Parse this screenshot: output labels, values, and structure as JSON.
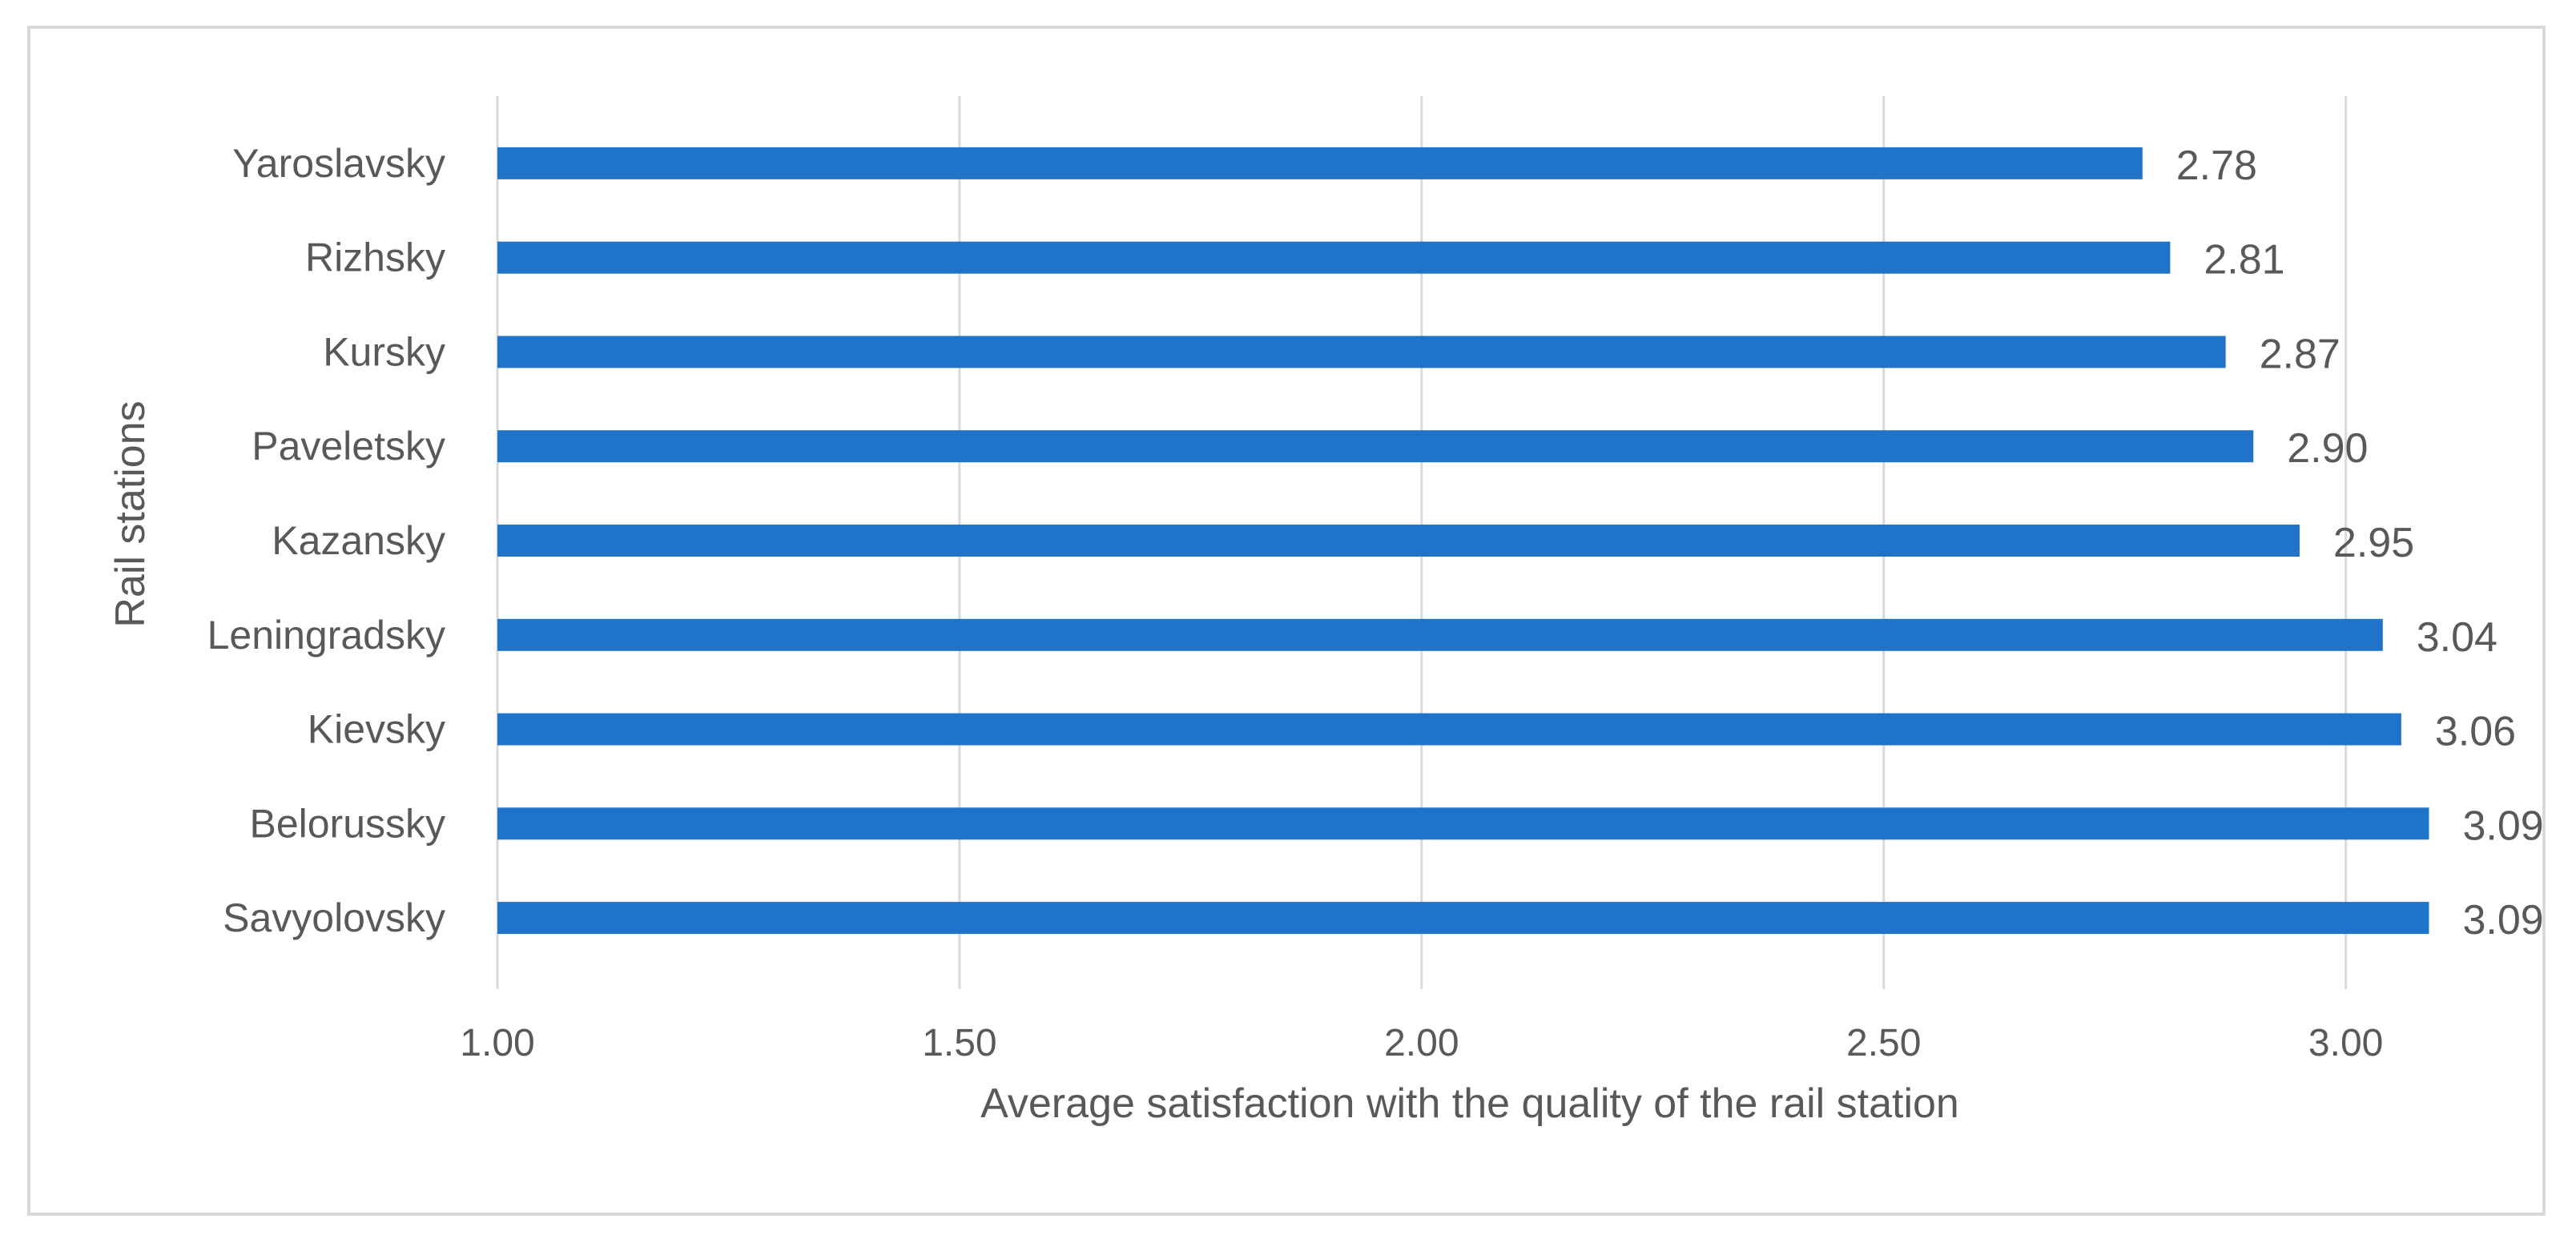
{
  "chart_data": {
    "type": "bar",
    "orientation": "horizontal",
    "title": "",
    "xlabel": "Average satisfaction with the quality of the rail station",
    "ylabel": "Rail stations",
    "categories": [
      "Yaroslavsky",
      "Rizhsky",
      "Kursky",
      "Paveletsky",
      "Kazansky",
      "Leningradsky",
      "Kievsky",
      "Belorussky",
      "Savyolovsky"
    ],
    "values": [
      2.78,
      2.81,
      2.87,
      2.9,
      2.95,
      3.04,
      3.06,
      3.09,
      3.09
    ],
    "value_labels": [
      "2.78",
      "2.81",
      "2.87",
      "2.90",
      "2.95",
      "3.04",
      "3.06",
      "3.09",
      "3.09"
    ],
    "xlim": [
      1.0,
      3.1
    ],
    "xticks": [
      1.0,
      1.5,
      2.0,
      2.5,
      3.0
    ],
    "xtick_labels": [
      "1.00",
      "1.50",
      "2.00",
      "2.50",
      "3.00"
    ],
    "grid": true,
    "legend": "none",
    "colors": {
      "bar": "#1f74c9",
      "grid": "#d9d9d9",
      "text": "#595959",
      "frame": "#d9d9d9"
    }
  }
}
